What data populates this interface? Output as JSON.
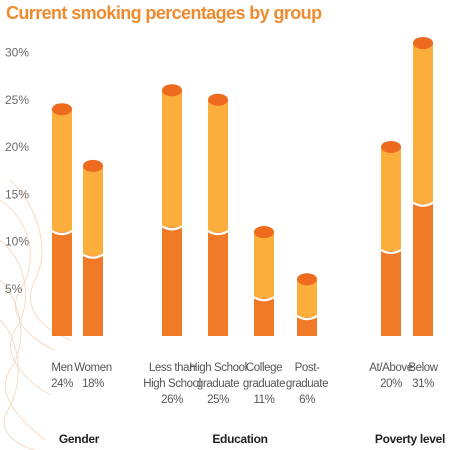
{
  "title": "Current smoking percentages by group",
  "colors": {
    "title": "#f08a2e",
    "bar_bottom": "#f07a28",
    "bar_top": "#fbae3c",
    "cap": "#ee6a1e",
    "tick_text": "#6b6b6b",
    "group_text": "#222222",
    "watermark": "#f3dcc6"
  },
  "chart_data": {
    "type": "bar",
    "stacked": true,
    "y_ticks": [
      "30%",
      "25%",
      "20%",
      "15%",
      "10%",
      "5%"
    ],
    "ylim": [
      0,
      32
    ],
    "grid": false,
    "groups": [
      {
        "name": "Gender",
        "bars": [
          {
            "label": [
              "Men",
              "24%"
            ],
            "total": 24,
            "lower": 11
          },
          {
            "label": [
              "Women",
              "18%"
            ],
            "total": 18,
            "lower": 8.5
          }
        ]
      },
      {
        "name": "Education",
        "bars": [
          {
            "label": [
              "Less than",
              "High School",
              "26%"
            ],
            "total": 26,
            "lower": 11.5
          },
          {
            "label": [
              "High School",
              "graduate",
              "25%"
            ],
            "total": 25,
            "lower": 11
          },
          {
            "label": [
              "College",
              "graduate",
              "11%"
            ],
            "total": 11,
            "lower": 4
          },
          {
            "label": [
              "Post-",
              "graduate",
              "6%"
            ],
            "total": 6,
            "lower": 2
          }
        ]
      },
      {
        "name": "Poverty level",
        "bars": [
          {
            "label": [
              "At/Above",
              "20%"
            ],
            "total": 20,
            "lower": 9
          },
          {
            "label": [
              "Below",
              "31%"
            ],
            "total": 31,
            "lower": 14
          }
        ]
      }
    ]
  }
}
